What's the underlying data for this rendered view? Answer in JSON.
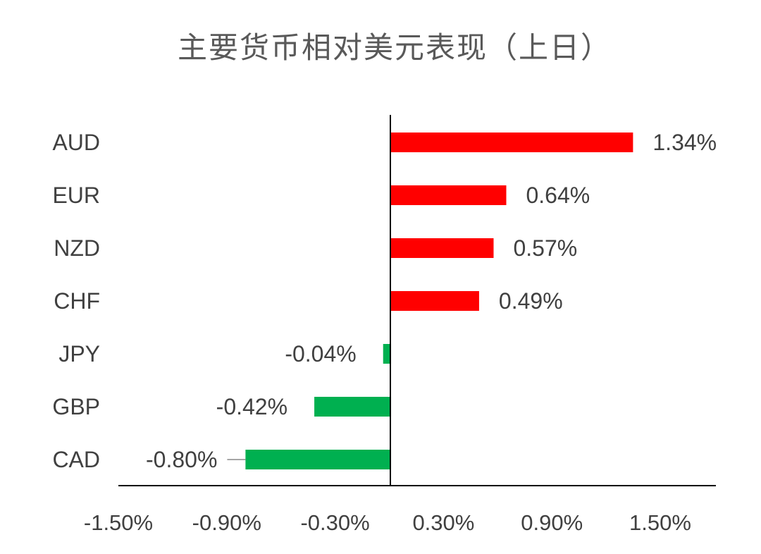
{
  "chart_data": {
    "type": "bar",
    "orientation": "horizontal",
    "title": "主要货币相对美元表现（上日）",
    "categories": [
      "AUD",
      "EUR",
      "NZD",
      "CHF",
      "JPY",
      "GBP",
      "CAD"
    ],
    "values": [
      1.34,
      0.64,
      0.57,
      0.49,
      -0.04,
      -0.42,
      -0.8
    ],
    "value_labels": [
      "1.34%",
      "0.64%",
      "0.57%",
      "0.49%",
      "-0.04%",
      "-0.42%",
      "-0.80%"
    ],
    "xlim": [
      -1.5,
      1.5
    ],
    "x_ticks": [
      -1.5,
      -0.9,
      -0.3,
      0.3,
      0.9,
      1.5
    ],
    "x_tick_labels": [
      "-1.50%",
      "-0.90%",
      "-0.30%",
      "0.30%",
      "0.90%",
      "1.50%"
    ],
    "xlabel": "",
    "ylabel": "",
    "grid": false,
    "legend": "none",
    "colors": {
      "positive": "#ff0000",
      "negative": "#00b050",
      "axis": "#000000",
      "text": "#404040",
      "title": "#595959"
    }
  }
}
